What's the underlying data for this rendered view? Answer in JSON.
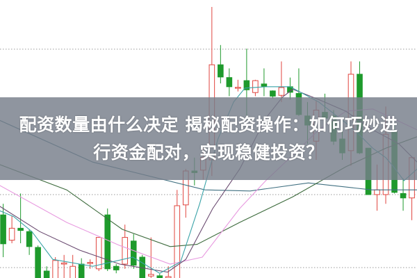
{
  "headline": {
    "line1": "配资数量由什么决定 揭秘配资操作：如何巧妙进",
    "line2": "行资金配对，实现稳健投资？"
  },
  "chart_data": {
    "type": "candlestick",
    "title": "",
    "xlabel": "",
    "ylabel": "",
    "ylim": [
      0,
      100
    ],
    "grid": {
      "style": "dotted",
      "levels": [
        82.3,
        30,
        3.75
      ]
    },
    "colors": {
      "up": "#e0443e",
      "down": "#1e9a2c",
      "grid": "#999999",
      "banner": "#767e8a"
    },
    "candles": [
      {
        "o": 22.7,
        "c": 12.3,
        "h": 26.7,
        "l": 7.5
      },
      {
        "o": 13.6,
        "c": 17.9,
        "h": 22.5,
        "l": 12.5
      },
      {
        "o": 17.9,
        "c": 17.1,
        "h": 30.4,
        "l": 12.5
      },
      {
        "o": 16.7,
        "c": 11.3,
        "h": 17.5,
        "l": 8.3
      },
      {
        "o": 11,
        "c": -3,
        "h": 11.7,
        "l": -5
      },
      {
        "o": 2.5,
        "c": -4,
        "h": 4.2,
        "l": -6
      },
      {
        "o": -3,
        "c": 6.3,
        "h": 7.5,
        "l": -5
      },
      {
        "o": 5,
        "c": 5.4,
        "h": 8.3,
        "l": -1
      },
      {
        "o": -2.5,
        "c": 4.2,
        "h": 8.3,
        "l": -4
      },
      {
        "o": 5,
        "c": -2.5,
        "h": 7.1,
        "l": -4
      },
      {
        "o": 5.4,
        "c": 5.6,
        "h": 6.7,
        "l": 3.3
      },
      {
        "o": 3.3,
        "c": 14.6,
        "h": 14.6,
        "l": 2.5
      },
      {
        "o": 22.7,
        "c": 3.3,
        "h": 25,
        "l": 2.5
      },
      {
        "o": 4.2,
        "c": 2.9,
        "h": 5,
        "l": 1.7
      },
      {
        "o": 5,
        "c": 14.6,
        "h": 19.2,
        "l": 3.3
      },
      {
        "o": 13.3,
        "c": 4.6,
        "h": 15.8,
        "l": 3.3
      },
      {
        "o": 7.5,
        "c": -1,
        "h": 8.3,
        "l": -3
      },
      {
        "o": 0.7,
        "c": 1.3,
        "h": 14.6,
        "l": -1
      },
      {
        "o": 0.8,
        "c": -2.5,
        "h": 1.5,
        "l": -4
      },
      {
        "o": 0,
        "c": 0.5,
        "h": 4.2,
        "l": -4
      },
      {
        "o": -3,
        "c": 26,
        "h": 31.7,
        "l": -5
      },
      {
        "o": 26.3,
        "c": 38.5,
        "h": 39.2,
        "l": 21.7
      },
      {
        "o": 38.5,
        "c": 37.9,
        "h": 43.3,
        "l": 33.3
      },
      {
        "o": 38.8,
        "c": 43.3,
        "h": 46.7,
        "l": 35.4
      },
      {
        "o": 42.5,
        "c": 76.7,
        "h": 97.5,
        "l": 36.7
      },
      {
        "o": 76.7,
        "c": 72.3,
        "h": 83.8,
        "l": 70
      },
      {
        "o": 72.1,
        "c": 68.8,
        "h": 75.4,
        "l": 65.4
      },
      {
        "o": 68.5,
        "c": 68.6,
        "h": 71.3,
        "l": 67.1
      },
      {
        "o": 71,
        "c": 67.7,
        "h": 82.5,
        "l": 58.3
      },
      {
        "o": 66.7,
        "c": 71,
        "h": 71.3,
        "l": 65.4
      },
      {
        "o": 69.8,
        "c": 69,
        "h": 75.4,
        "l": 65.4
      },
      {
        "o": 67.3,
        "c": 65.4,
        "h": 67.5,
        "l": 64.6
      },
      {
        "o": 65.7,
        "c": 68.5,
        "h": 77.9,
        "l": 63.3
      },
      {
        "o": 68.8,
        "c": 66.8,
        "h": 72.1,
        "l": 64.2
      },
      {
        "o": 66.4,
        "c": 58.8,
        "h": 75.4,
        "l": 58.3
      },
      {
        "o": 58.3,
        "c": 55,
        "h": 63.3,
        "l": 48.3
      },
      {
        "o": 49.2,
        "c": 60.4,
        "h": 63.8,
        "l": 42.5
      },
      {
        "o": 59.6,
        "c": 57.5,
        "h": 66.3,
        "l": 55.8
      },
      {
        "o": 58.3,
        "c": 49.2,
        "h": 60.4,
        "l": 47.9
      },
      {
        "o": 50,
        "c": 45,
        "h": 53.3,
        "l": 42.5
      },
      {
        "o": 45.8,
        "c": 73.3,
        "h": 77.9,
        "l": 40.4
      },
      {
        "o": 73.3,
        "c": 45,
        "h": 77.9,
        "l": 44.6
      },
      {
        "o": 46.7,
        "c": 30,
        "h": 46.7,
        "l": 30
      },
      {
        "o": 30,
        "c": 31.7,
        "h": 40.8,
        "l": 24.2
      },
      {
        "o": 30,
        "c": 51.7,
        "h": 61.7,
        "l": 26.7
      },
      {
        "o": 52.5,
        "c": 30.8,
        "h": 55.8,
        "l": 30.4
      },
      {
        "o": 30.4,
        "c": 28.8,
        "h": 35.8,
        "l": 24.2
      },
      {
        "o": 28.8,
        "c": 43.3,
        "h": 43.3,
        "l": 20.8
      }
    ],
    "moving_averages": [
      {
        "color": "#3f6f80",
        "points": [
          [
            -0.4,
            56.7
          ],
          [
            10.3,
            41.7
          ],
          [
            23.2,
            31.7
          ],
          [
            28.4,
            31.3
          ],
          [
            35.1,
            34.2
          ],
          [
            42.4,
            31.7
          ],
          [
            47.6,
            31.7
          ]
        ]
      },
      {
        "color": "#3d6b3d",
        "points": [
          [
            -0.4,
            40.8
          ],
          [
            7.3,
            31.7
          ],
          [
            13.7,
            17.5
          ],
          [
            19.2,
            11.3
          ],
          [
            22.3,
            12.1
          ],
          [
            27.2,
            20
          ],
          [
            33.3,
            29.2
          ],
          [
            39.4,
            40
          ],
          [
            44,
            46.7
          ],
          [
            47.6,
            50.8
          ]
        ]
      },
      {
        "color": "#e89ae0",
        "points": [
          [
            -0.4,
            33.3
          ],
          [
            7.3,
            20
          ],
          [
            13.4,
            11.7
          ],
          [
            19.2,
            5
          ],
          [
            22.9,
            7.5
          ],
          [
            27.2,
            25
          ],
          [
            30.2,
            35
          ],
          [
            33.3,
            44.2
          ],
          [
            36.3,
            53.3
          ],
          [
            39.4,
            60
          ],
          [
            42.5,
            60.8
          ],
          [
            47.6,
            53.3
          ]
        ]
      },
      {
        "color": "#6a4a70",
        "points": [
          [
            -0.4,
            25.8
          ],
          [
            4.2,
            16.7
          ],
          [
            8.8,
            10
          ],
          [
            13.4,
            5
          ],
          [
            18.9,
            2.1
          ],
          [
            21,
            6.7
          ],
          [
            24.1,
            25
          ],
          [
            27.2,
            39.2
          ],
          [
            30.2,
            57.5
          ],
          [
            32.1,
            65
          ],
          [
            33.3,
            67.9
          ],
          [
            36.3,
            64.2
          ],
          [
            39.4,
            60
          ],
          [
            42.5,
            53.3
          ],
          [
            45.5,
            48.3
          ],
          [
            47.6,
            41.7
          ]
        ]
      },
      {
        "color": "#3aa3a8",
        "points": [
          [
            -0.4,
            24.2
          ],
          [
            1.2,
            22.1
          ],
          [
            3.3,
            16.7
          ],
          [
            5.7,
            6.7
          ],
          [
            10.3,
            4.2
          ],
          [
            14.9,
            7.5
          ],
          [
            18,
            1.7
          ],
          [
            20.4,
            5.8
          ],
          [
            22.6,
            26.7
          ],
          [
            24.7,
            50
          ],
          [
            26.5,
            63.3
          ],
          [
            27.8,
            68.3
          ],
          [
            30.2,
            68.8
          ],
          [
            33,
            68.8
          ],
          [
            36.3,
            63.3
          ],
          [
            39.4,
            55.8
          ],
          [
            40.9,
            51.7
          ],
          [
            42.5,
            46.7
          ],
          [
            44,
            43.3
          ],
          [
            44.9,
            40
          ],
          [
            46.1,
            35
          ],
          [
            47.6,
            39.2
          ]
        ]
      }
    ]
  }
}
